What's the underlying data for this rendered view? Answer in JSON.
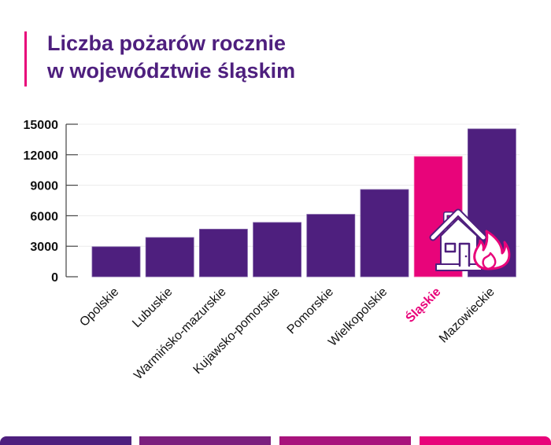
{
  "title": {
    "line1": "Liczba pożarów rocznie",
    "line2": "w województwie śląskim"
  },
  "colors": {
    "bar": "#4e1f7e",
    "highlight": "#e8047a",
    "title": "#4e1f7e",
    "stripes": [
      "#4e1f7e",
      "#7b1f7e",
      "#a8137c",
      "#e8047a"
    ]
  },
  "icon": "house-fire-icon",
  "chart_data": {
    "type": "bar",
    "title": "Liczba pożarów rocznie w województwie śląskim",
    "xlabel": "",
    "ylabel": "",
    "categories": [
      "Opolskie",
      "Lubuskie",
      "Warmińsko-mazurskie",
      "Kujawsko-pomorskie",
      "Pomorskie",
      "Wielkopolskie",
      "Śląskie",
      "Mazowieckie"
    ],
    "values": [
      2950,
      3860,
      4680,
      5340,
      6140,
      8580,
      11830,
      14540
    ],
    "highlight": "Śląskie",
    "ylim": [
      0,
      15000
    ],
    "yticks": [
      "0",
      "3000",
      "6000",
      "9000",
      "12000",
      "15000"
    ],
    "grid": true,
    "legend": "none"
  }
}
